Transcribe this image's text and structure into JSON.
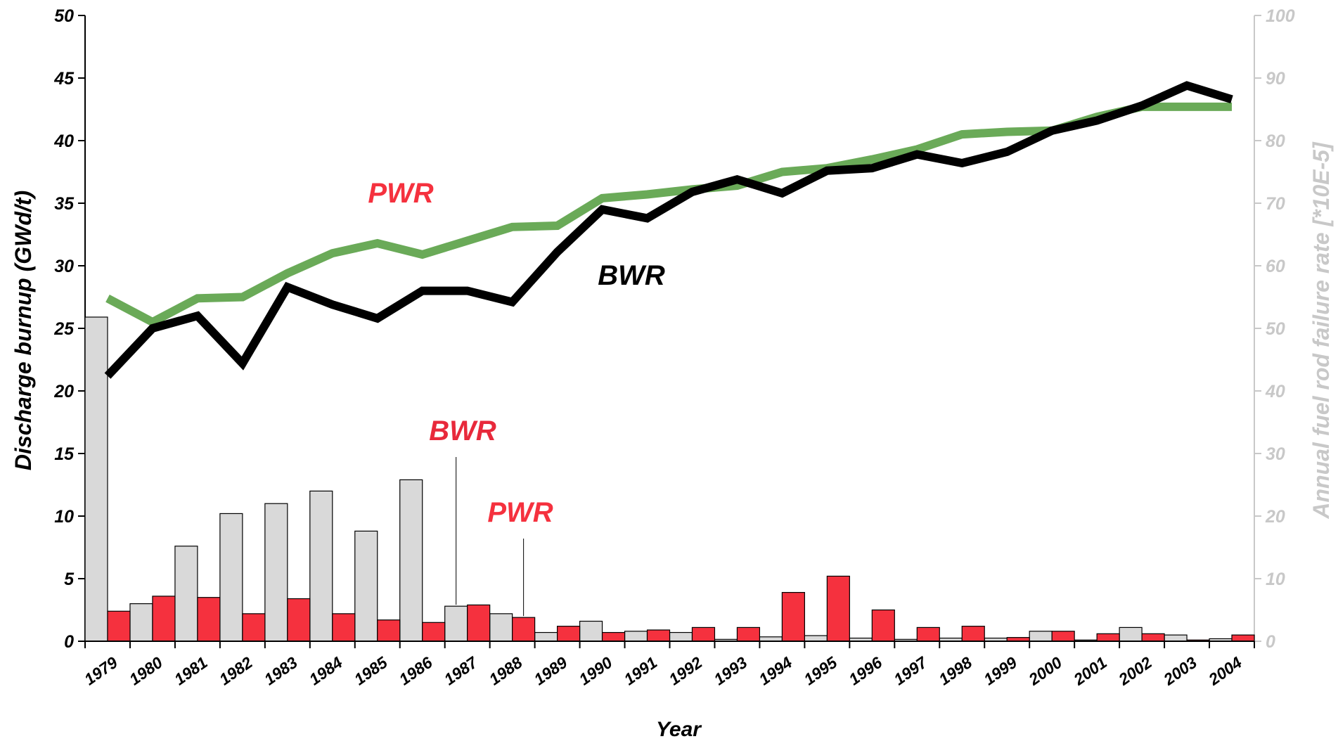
{
  "chart_data": {
    "type": "combo",
    "xlabel": "Year",
    "ylabel": "Discharge burnup (GWd/t)",
    "y2label": "Annual fuel rod failure rate [*10E-5]",
    "categories": [
      "1979",
      "1980",
      "1981",
      "1982",
      "1983",
      "1984",
      "1985",
      "1986",
      "1987",
      "1988",
      "1989",
      "1990",
      "1991",
      "1992",
      "1993",
      "1994",
      "1995",
      "1996",
      "1997",
      "1998",
      "1999",
      "2000",
      "2001",
      "2002",
      "2003",
      "2004"
    ],
    "ylim": [
      0,
      50
    ],
    "yticks": [
      0,
      5,
      10,
      15,
      20,
      25,
      30,
      35,
      40,
      45,
      50
    ],
    "y2lim": [
      0,
      100
    ],
    "y2ticks": [
      0,
      10,
      20,
      30,
      40,
      50,
      60,
      70,
      80,
      90,
      100
    ],
    "grid": false,
    "series": [
      {
        "name": "BWR",
        "type": "bar",
        "axis": "y2",
        "color": "#d9d9d9",
        "label_color": "#e8293b",
        "values": [
          51.8,
          6,
          15.2,
          20.4,
          22,
          24,
          17.6,
          25.8,
          5.6,
          4.4,
          1.4,
          3.2,
          1.6,
          1.4,
          0.3,
          0.7,
          0.9,
          0.5,
          0.3,
          0.5,
          0.5,
          1.6,
          0.2,
          2.2,
          1.0,
          0.4
        ]
      },
      {
        "name": "PWR",
        "type": "bar",
        "axis": "y2",
        "color": "#f5313e",
        "label_color": "#f5313e",
        "values": [
          4.8,
          7.2,
          7,
          4.4,
          6.8,
          4.4,
          3.4,
          3,
          5.8,
          3.8,
          2.4,
          1.4,
          1.8,
          2.2,
          2.2,
          7.8,
          10.4,
          5,
          2.2,
          2.4,
          0.6,
          1.6,
          1.2,
          1.2,
          0.2,
          1.0
        ]
      },
      {
        "name": "PWR",
        "type": "line",
        "axis": "y",
        "color": "#6aaa58",
        "label_color": "#f5313e",
        "values": [
          27.4,
          25.5,
          27.4,
          27.5,
          29.4,
          31.0,
          31.8,
          30.9,
          32.0,
          33.1,
          33.2,
          35.4,
          35.7,
          36.1,
          36.4,
          37.5,
          37.8,
          38.5,
          39.3,
          40.5,
          40.7,
          40.8,
          41.9,
          42.7,
          42.7,
          42.7
        ]
      },
      {
        "name": "BWR",
        "type": "line",
        "axis": "y",
        "color": "#000000",
        "label_color": "#000000",
        "values": [
          21.2,
          25.0,
          26.0,
          22.2,
          28.3,
          26.9,
          25.8,
          28.0,
          28.0,
          27.1,
          31.1,
          34.5,
          33.8,
          35.9,
          36.9,
          35.8,
          37.6,
          37.8,
          38.9,
          38.2,
          39.1,
          40.8,
          41.6,
          42.8,
          44.4,
          43.3
        ]
      }
    ]
  }
}
